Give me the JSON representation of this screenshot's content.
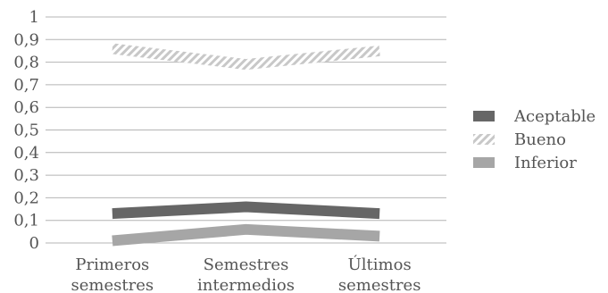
{
  "chart_data": {
    "type": "line",
    "title": "",
    "xlabel": "",
    "ylabel": "",
    "ylim": [
      0,
      1
    ],
    "yticks": [
      "0",
      "0,1",
      "0,2",
      "0,3",
      "0,4",
      "0,5",
      "0,6",
      "0,7",
      "0,8",
      "0,9",
      "1"
    ],
    "grid": true,
    "legend_position": "right",
    "categories": [
      [
        "Primeros",
        "semestres"
      ],
      [
        "Semestres",
        "intermedios"
      ],
      [
        "Últimos",
        "semestres"
      ]
    ],
    "series": [
      {
        "name": "Aceptable",
        "values": [
          0.13,
          0.16,
          0.13
        ],
        "color": "#666666",
        "style": "solid"
      },
      {
        "name": "Bueno",
        "values": [
          0.86,
          0.79,
          0.85
        ],
        "color": "#c8c8c8",
        "style": "hatched"
      },
      {
        "name": "Inferior",
        "values": [
          0.01,
          0.06,
          0.03
        ],
        "color": "#a6a6a6",
        "style": "solid"
      }
    ]
  }
}
